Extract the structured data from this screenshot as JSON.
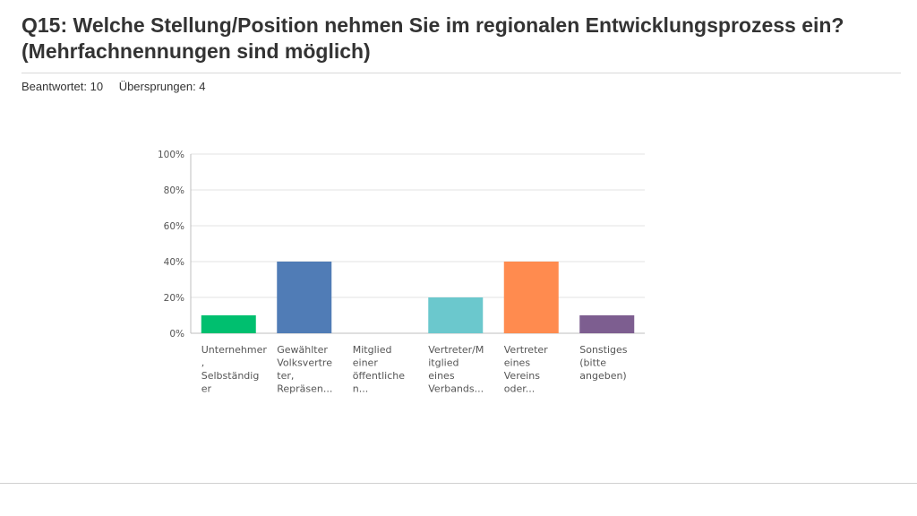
{
  "page": {
    "title": "Q15: Welche Stellung/Position nehmen Sie im regionalen Entwicklungsprozess ein? (Mehrfachnennungen sind möglich)",
    "answered": "Beantwortet: 10",
    "skipped": "Übersprungen: 4"
  },
  "chart_data": {
    "type": "bar",
    "title": "",
    "xlabel": "",
    "ylabel": "",
    "ylim": [
      0,
      100
    ],
    "y_ticks": [
      "0%",
      "20%",
      "40%",
      "60%",
      "80%",
      "100%"
    ],
    "grid": true,
    "categories": [
      [
        "Unternehmer",
        ",",
        "Selbständig",
        "er"
      ],
      [
        "Gewählter",
        "Volksvertre",
        "ter,",
        "Repräsen..."
      ],
      [
        "Mitglied",
        "einer",
        "öffentliche",
        "n..."
      ],
      [
        "Vertreter/M",
        "itglied",
        "eines",
        "Verbands..."
      ],
      [
        "Vertreter",
        "eines",
        "Vereins",
        "oder..."
      ],
      [
        "Sonstiges",
        "(bitte",
        "angeben)"
      ]
    ],
    "values": [
      10,
      40,
      0,
      20,
      40,
      10
    ],
    "colors": [
      "#00BF6F",
      "#507CB6",
      "#2DCCD3",
      "#6BC8CD",
      "#FF8B4F",
      "#7D5E90"
    ]
  }
}
